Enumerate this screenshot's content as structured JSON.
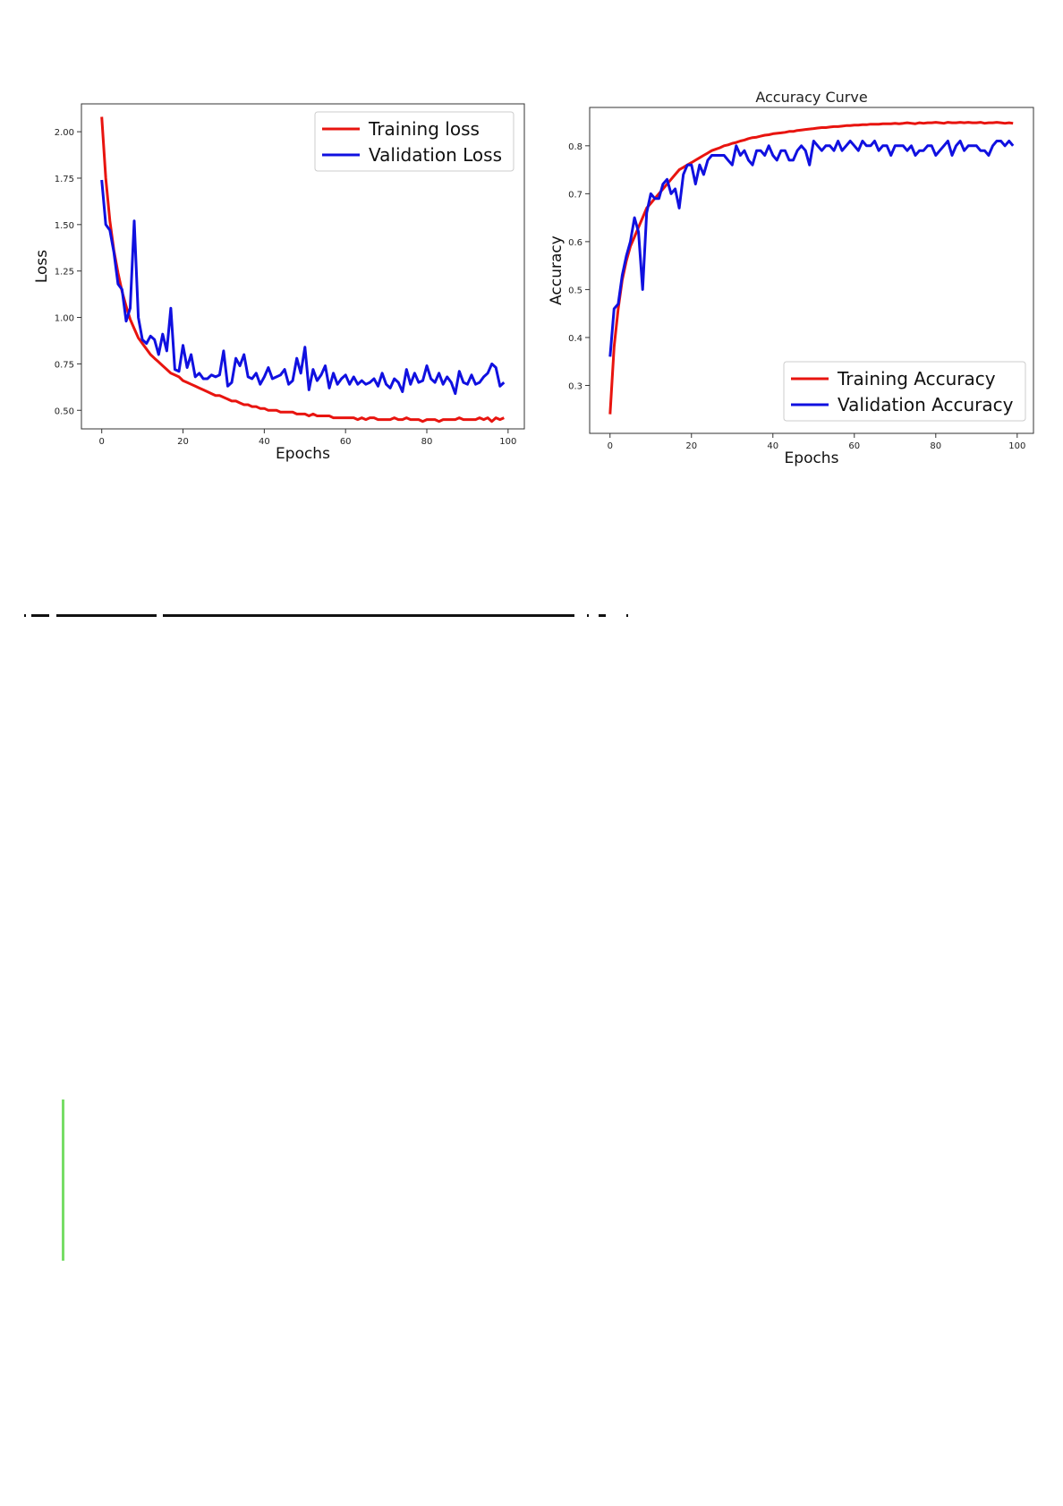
{
  "chart_data": [
    {
      "type": "line",
      "title": "",
      "xlabel": "Epochs",
      "ylabel": "Loss",
      "xlim": [
        -5,
        104
      ],
      "ylim": [
        0.4,
        2.15
      ],
      "xticks": [
        "0",
        "20",
        "40",
        "60",
        "80",
        "100"
      ],
      "yticks": [
        "0.50",
        "0.75",
        "1.00",
        "1.25",
        "1.50",
        "1.75",
        "2.00"
      ],
      "legend": "top-right",
      "series": [
        {
          "name": "Training loss",
          "color": "#e8140f",
          "x": [
            0,
            1,
            2,
            3,
            4,
            5,
            6,
            7,
            8,
            9,
            10,
            11,
            12,
            13,
            14,
            15,
            16,
            17,
            18,
            19,
            20,
            21,
            22,
            23,
            24,
            25,
            26,
            27,
            28,
            29,
            30,
            31,
            32,
            33,
            34,
            35,
            36,
            37,
            38,
            39,
            40,
            41,
            42,
            43,
            44,
            45,
            46,
            47,
            48,
            49,
            50,
            51,
            52,
            53,
            54,
            55,
            56,
            57,
            58,
            59,
            60,
            61,
            62,
            63,
            64,
            65,
            66,
            67,
            68,
            69,
            70,
            71,
            72,
            73,
            74,
            75,
            76,
            77,
            78,
            79,
            80,
            81,
            82,
            83,
            84,
            85,
            86,
            87,
            88,
            89,
            90,
            91,
            92,
            93,
            94,
            95,
            96,
            97,
            98,
            99
          ],
          "values": [
            2.08,
            1.75,
            1.52,
            1.36,
            1.24,
            1.14,
            1.06,
            0.99,
            0.94,
            0.89,
            0.86,
            0.83,
            0.8,
            0.78,
            0.76,
            0.74,
            0.72,
            0.7,
            0.69,
            0.68,
            0.66,
            0.65,
            0.64,
            0.63,
            0.62,
            0.61,
            0.6,
            0.59,
            0.58,
            0.58,
            0.57,
            0.56,
            0.55,
            0.55,
            0.54,
            0.53,
            0.53,
            0.52,
            0.52,
            0.51,
            0.51,
            0.5,
            0.5,
            0.5,
            0.49,
            0.49,
            0.49,
            0.49,
            0.48,
            0.48,
            0.48,
            0.47,
            0.48,
            0.47,
            0.47,
            0.47,
            0.47,
            0.46,
            0.46,
            0.46,
            0.46,
            0.46,
            0.46,
            0.45,
            0.46,
            0.45,
            0.46,
            0.46,
            0.45,
            0.45,
            0.45,
            0.45,
            0.46,
            0.45,
            0.45,
            0.46,
            0.45,
            0.45,
            0.45,
            0.44,
            0.45,
            0.45,
            0.45,
            0.44,
            0.45,
            0.45,
            0.45,
            0.45,
            0.46,
            0.45,
            0.45,
            0.45,
            0.45,
            0.46,
            0.45,
            0.46,
            0.44,
            0.46,
            0.45,
            0.46
          ]
        },
        {
          "name": "Validation Loss",
          "color": "#1010e0",
          "x": [
            0,
            1,
            2,
            3,
            4,
            5,
            6,
            7,
            8,
            9,
            10,
            11,
            12,
            13,
            14,
            15,
            16,
            17,
            18,
            19,
            20,
            21,
            22,
            23,
            24,
            25,
            26,
            27,
            28,
            29,
            30,
            31,
            32,
            33,
            34,
            35,
            36,
            37,
            38,
            39,
            40,
            41,
            42,
            43,
            44,
            45,
            46,
            47,
            48,
            49,
            50,
            51,
            52,
            53,
            54,
            55,
            56,
            57,
            58,
            59,
            60,
            61,
            62,
            63,
            64,
            65,
            66,
            67,
            68,
            69,
            70,
            71,
            72,
            73,
            74,
            75,
            76,
            77,
            78,
            79,
            80,
            81,
            82,
            83,
            84,
            85,
            86,
            87,
            88,
            89,
            90,
            91,
            92,
            93,
            94,
            95,
            96,
            97,
            98,
            99
          ],
          "values": [
            1.74,
            1.5,
            1.47,
            1.35,
            1.18,
            1.15,
            0.98,
            1.05,
            1.52,
            1.0,
            0.88,
            0.86,
            0.9,
            0.88,
            0.8,
            0.91,
            0.82,
            1.05,
            0.72,
            0.71,
            0.85,
            0.73,
            0.8,
            0.68,
            0.7,
            0.67,
            0.67,
            0.69,
            0.68,
            0.69,
            0.82,
            0.63,
            0.65,
            0.78,
            0.74,
            0.8,
            0.68,
            0.67,
            0.7,
            0.64,
            0.68,
            0.73,
            0.67,
            0.68,
            0.69,
            0.72,
            0.64,
            0.66,
            0.78,
            0.7,
            0.84,
            0.61,
            0.72,
            0.66,
            0.69,
            0.74,
            0.62,
            0.7,
            0.64,
            0.67,
            0.69,
            0.64,
            0.68,
            0.64,
            0.66,
            0.64,
            0.65,
            0.67,
            0.63,
            0.7,
            0.64,
            0.62,
            0.67,
            0.65,
            0.6,
            0.72,
            0.64,
            0.7,
            0.65,
            0.66,
            0.74,
            0.67,
            0.65,
            0.7,
            0.64,
            0.68,
            0.65,
            0.59,
            0.71,
            0.65,
            0.64,
            0.69,
            0.64,
            0.65,
            0.68,
            0.7,
            0.75,
            0.73,
            0.63,
            0.65
          ]
        }
      ]
    },
    {
      "type": "line",
      "title": "Accuracy Curve",
      "xlabel": "Epochs",
      "ylabel": "Accuracy",
      "xlim": [
        -5,
        104
      ],
      "ylim": [
        0.2,
        0.88
      ],
      "xticks": [
        "0",
        "20",
        "40",
        "60",
        "80",
        "100"
      ],
      "yticks": [
        "0.3",
        "0.4",
        "0.5",
        "0.6",
        "0.7",
        "0.8"
      ],
      "legend": "bottom-right",
      "series": [
        {
          "name": "Training Accuracy",
          "color": "#e8140f",
          "x": [
            0,
            1,
            2,
            3,
            4,
            5,
            6,
            7,
            8,
            9,
            10,
            11,
            12,
            13,
            14,
            15,
            16,
            17,
            18,
            19,
            20,
            21,
            22,
            23,
            24,
            25,
            26,
            27,
            28,
            29,
            30,
            31,
            32,
            33,
            34,
            35,
            36,
            37,
            38,
            39,
            40,
            41,
            42,
            43,
            44,
            45,
            46,
            47,
            48,
            49,
            50,
            51,
            52,
            53,
            54,
            55,
            56,
            57,
            58,
            59,
            60,
            61,
            62,
            63,
            64,
            65,
            66,
            67,
            68,
            69,
            70,
            71,
            72,
            73,
            74,
            75,
            76,
            77,
            78,
            79,
            80,
            81,
            82,
            83,
            84,
            85,
            86,
            87,
            88,
            89,
            90,
            91,
            92,
            93,
            94,
            95,
            96,
            97,
            98,
            99
          ],
          "values": [
            0.24,
            0.38,
            0.46,
            0.52,
            0.56,
            0.59,
            0.61,
            0.63,
            0.65,
            0.67,
            0.68,
            0.69,
            0.7,
            0.71,
            0.72,
            0.73,
            0.74,
            0.75,
            0.755,
            0.76,
            0.765,
            0.77,
            0.775,
            0.78,
            0.785,
            0.79,
            0.793,
            0.796,
            0.8,
            0.802,
            0.805,
            0.807,
            0.81,
            0.812,
            0.815,
            0.817,
            0.818,
            0.82,
            0.822,
            0.823,
            0.825,
            0.826,
            0.827,
            0.828,
            0.83,
            0.83,
            0.832,
            0.833,
            0.834,
            0.835,
            0.836,
            0.837,
            0.838,
            0.838,
            0.839,
            0.84,
            0.84,
            0.841,
            0.842,
            0.842,
            0.843,
            0.843,
            0.844,
            0.844,
            0.845,
            0.845,
            0.845,
            0.846,
            0.846,
            0.846,
            0.847,
            0.846,
            0.847,
            0.848,
            0.847,
            0.846,
            0.848,
            0.847,
            0.848,
            0.848,
            0.849,
            0.848,
            0.847,
            0.849,
            0.848,
            0.848,
            0.849,
            0.848,
            0.849,
            0.848,
            0.848,
            0.849,
            0.847,
            0.848,
            0.848,
            0.849,
            0.848,
            0.847,
            0.848,
            0.847
          ]
        },
        {
          "name": "Validation Accuracy",
          "color": "#1010e0",
          "x": [
            0,
            1,
            2,
            3,
            4,
            5,
            6,
            7,
            8,
            9,
            10,
            11,
            12,
            13,
            14,
            15,
            16,
            17,
            18,
            19,
            20,
            21,
            22,
            23,
            24,
            25,
            26,
            27,
            28,
            29,
            30,
            31,
            32,
            33,
            34,
            35,
            36,
            37,
            38,
            39,
            40,
            41,
            42,
            43,
            44,
            45,
            46,
            47,
            48,
            49,
            50,
            51,
            52,
            53,
            54,
            55,
            56,
            57,
            58,
            59,
            60,
            61,
            62,
            63,
            64,
            65,
            66,
            67,
            68,
            69,
            70,
            71,
            72,
            73,
            74,
            75,
            76,
            77,
            78,
            79,
            80,
            81,
            82,
            83,
            84,
            85,
            86,
            87,
            88,
            89,
            90,
            91,
            92,
            93,
            94,
            95,
            96,
            97,
            98,
            99
          ],
          "values": [
            0.36,
            0.46,
            0.47,
            0.53,
            0.57,
            0.6,
            0.65,
            0.62,
            0.5,
            0.66,
            0.7,
            0.69,
            0.69,
            0.72,
            0.73,
            0.7,
            0.71,
            0.67,
            0.74,
            0.76,
            0.76,
            0.72,
            0.76,
            0.74,
            0.77,
            0.78,
            0.78,
            0.78,
            0.78,
            0.77,
            0.76,
            0.8,
            0.78,
            0.79,
            0.77,
            0.76,
            0.79,
            0.79,
            0.78,
            0.8,
            0.78,
            0.77,
            0.79,
            0.79,
            0.77,
            0.77,
            0.79,
            0.8,
            0.79,
            0.76,
            0.81,
            0.8,
            0.79,
            0.8,
            0.8,
            0.79,
            0.81,
            0.79,
            0.8,
            0.81,
            0.8,
            0.79,
            0.81,
            0.8,
            0.8,
            0.81,
            0.79,
            0.8,
            0.8,
            0.78,
            0.8,
            0.8,
            0.8,
            0.79,
            0.8,
            0.78,
            0.79,
            0.79,
            0.8,
            0.8,
            0.78,
            0.79,
            0.8,
            0.81,
            0.78,
            0.8,
            0.81,
            0.79,
            0.8,
            0.8,
            0.8,
            0.79,
            0.79,
            0.78,
            0.8,
            0.81,
            0.81,
            0.8,
            0.81,
            0.8
          ]
        }
      ]
    }
  ]
}
